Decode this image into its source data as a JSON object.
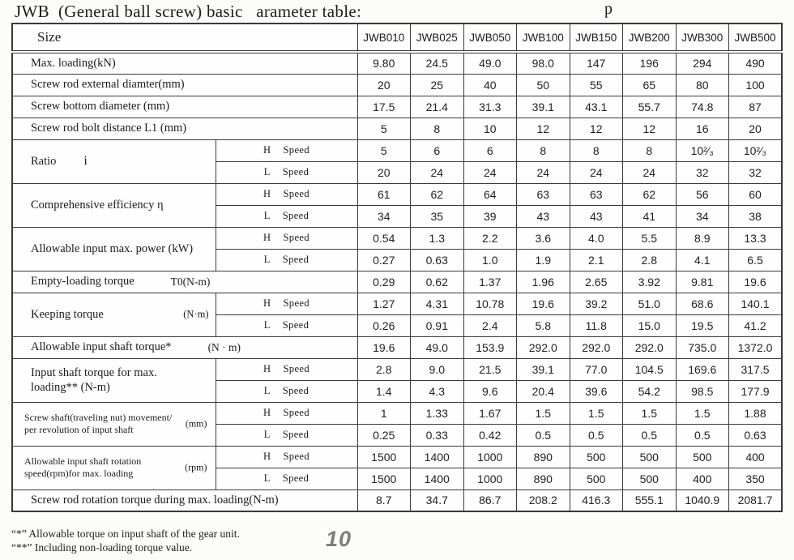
{
  "page": {
    "title": "JWB  (General ball screw) basic   arameter table:",
    "stray_letter": "p",
    "page_number": "10"
  },
  "table": {
    "header": {
      "size_label": "Size",
      "columns": [
        "JWB010",
        "JWB025",
        "JWB050",
        "JWB100",
        "JWB150",
        "JWB200",
        "JWB300",
        "JWB500"
      ]
    },
    "speed": {
      "h": "H",
      "l": "L",
      "word": "Speed"
    },
    "rows": [
      {
        "type": "single",
        "label": "Max. loading(kN)",
        "values": [
          "9.80",
          "24.5",
          "49.0",
          "98.0",
          "147",
          "196",
          "294",
          "490"
        ]
      },
      {
        "type": "single",
        "label": "Screw rod external diamter(mm)",
        "values": [
          "20",
          "25",
          "40",
          "50",
          "55",
          "65",
          "80",
          "100"
        ]
      },
      {
        "type": "single",
        "label": "Screw bottom diameter (mm)",
        "values": [
          "17.5",
          "21.4",
          "31.3",
          "39.1",
          "43.1",
          "55.7",
          "74.8",
          "87"
        ]
      },
      {
        "type": "single",
        "label": "Screw rod bolt distance L1 (mm)",
        "values": [
          "5",
          "8",
          "10",
          "12",
          "12",
          "12",
          "16",
          "20"
        ]
      },
      {
        "type": "double",
        "label": "Ratio",
        "suffix": "i",
        "h": [
          "5",
          "6",
          "6",
          "8",
          "8",
          "8",
          "10²⁄₃",
          "10²⁄₃"
        ],
        "l": [
          "20",
          "24",
          "24",
          "24",
          "24",
          "24",
          "32",
          "32"
        ]
      },
      {
        "type": "double",
        "label": "Comprehensive efficiency  η",
        "h": [
          "61",
          "62",
          "64",
          "63",
          "63",
          "62",
          "56",
          "60"
        ],
        "l": [
          "34",
          "35",
          "39",
          "43",
          "43",
          "41",
          "34",
          "38"
        ]
      },
      {
        "type": "double",
        "label": "Allowable input max. power (kW)",
        "h": [
          "0.54",
          "1.3",
          "2.2",
          "3.6",
          "4.0",
          "5.5",
          "8.9",
          "13.3"
        ],
        "l": [
          "0.27",
          "0.63",
          "1.0",
          "1.9",
          "2.1",
          "2.8",
          "4.1",
          "6.5"
        ]
      },
      {
        "type": "single",
        "label": "Empty-loading torque",
        "unit": "T0(N-m)",
        "values": [
          "0.29",
          "0.62",
          "1.37",
          "1.96",
          "2.65",
          "3.92",
          "9.81",
          "19.6"
        ]
      },
      {
        "type": "double",
        "label": "Keeping torque",
        "unit": "(N·m)",
        "h": [
          "1.27",
          "4.31",
          "10.78",
          "19.6",
          "39.2",
          "51.0",
          "68.6",
          "140.1"
        ],
        "l": [
          "0.26",
          "0.91",
          "2.4",
          "5.8",
          "11.8",
          "15.0",
          "19.5",
          "41.2"
        ]
      },
      {
        "type": "single",
        "label": "Allowable input shaft torque*",
        "unit": "(N · m)",
        "values": [
          "19.6",
          "49.0",
          "153.9",
          "292.0",
          "292.0",
          "292.0",
          "735.0",
          "1372.0"
        ]
      },
      {
        "type": "double",
        "label_lines": [
          "Input shaft torque for max.",
          "loading**  (N-m)"
        ],
        "h": [
          "2.8",
          "9.0",
          "21.5",
          "39.1",
          "77.0",
          "104.5",
          "169.6",
          "317.5"
        ],
        "l": [
          "1.4",
          "4.3",
          "9.6",
          "20.4",
          "39.6",
          "54.2",
          "98.5",
          "177.9"
        ]
      },
      {
        "type": "double",
        "label_lines": [
          "Screw shaft(traveling nut) movement/",
          "per revolution of input shaft"
        ],
        "unit": "(mm)",
        "small": true,
        "h": [
          "1",
          "1.33",
          "1.67",
          "1.5",
          "1.5",
          "1.5",
          "1.5",
          "1.88"
        ],
        "l": [
          "0.25",
          "0.33",
          "0.42",
          "0.5",
          "0.5",
          "0.5",
          "0.5",
          "0.63"
        ]
      },
      {
        "type": "double",
        "label_lines": [
          "Allowable input shaft rotation",
          "speed(rpm)for max. loading"
        ],
        "unit": "(rpm)",
        "small": true,
        "h": [
          "1500",
          "1400",
          "1000",
          "890",
          "500",
          "500",
          "500",
          "400"
        ],
        "l": [
          "1500",
          "1400",
          "1000",
          "890",
          "500",
          "500",
          "400",
          "350"
        ]
      },
      {
        "type": "single",
        "label": "Screw rod rotation torque during max. loading(N-m)",
        "values": [
          "8.7",
          "34.7",
          "86.7",
          "208.2",
          "416.3",
          "555.1",
          "1040.9",
          "2081.7"
        ]
      }
    ]
  },
  "footnotes": [
    "“*” Allowable torque on input shaft of the gear unit.",
    "“**” Including non-loading torque value."
  ],
  "colors": {
    "border": "#3a3a3a",
    "text": "#1c1c1c",
    "page_number": "#7d7d7d",
    "background": "#fcfcfb"
  }
}
